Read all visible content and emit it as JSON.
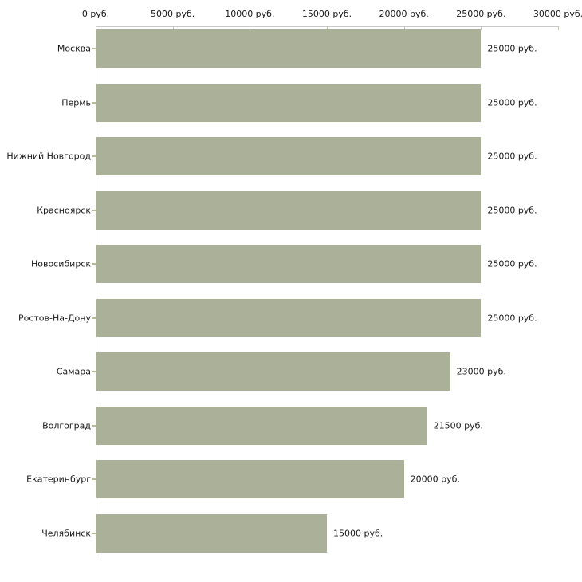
{
  "chart_data": {
    "type": "bar",
    "orientation": "horizontal",
    "title": "",
    "xlabel": "",
    "ylabel": "",
    "xlim": [
      0,
      30000
    ],
    "grid": false,
    "legend": false,
    "unit_suffix": " руб.",
    "categories": [
      "Москва",
      "Пермь",
      "Нижний Новгород",
      "Красноярск",
      "Новосибирск",
      "Ростов-На-Дону",
      "Самара",
      "Волгоград",
      "Екатеринбург",
      "Челябинск"
    ],
    "values": [
      25000,
      25000,
      25000,
      25000,
      25000,
      25000,
      23000,
      21500,
      20000,
      15000
    ],
    "value_labels": [
      "25000 руб.",
      "25000 руб.",
      "25000 руб.",
      "25000 руб.",
      "25000 руб.",
      "25000 руб.",
      "23000 руб.",
      "21500 руб.",
      "20000 руб.",
      "15000 руб."
    ],
    "x_tick_values": [
      0,
      5000,
      10000,
      15000,
      20000,
      25000,
      30000
    ],
    "x_tick_labels": [
      "0 руб.",
      "5000 руб.",
      "10000 руб.",
      "15000 руб.",
      "20000 руб.",
      "25000 руб.",
      "30000 руб."
    ],
    "colors": {
      "bar_fill": "#aab198",
      "axis_line": "#c9c9c9",
      "tick_mark": "#c3c7ab",
      "category_tick": "#b8bc93",
      "text": "#1a1a1a",
      "background": "#ffffff"
    }
  }
}
